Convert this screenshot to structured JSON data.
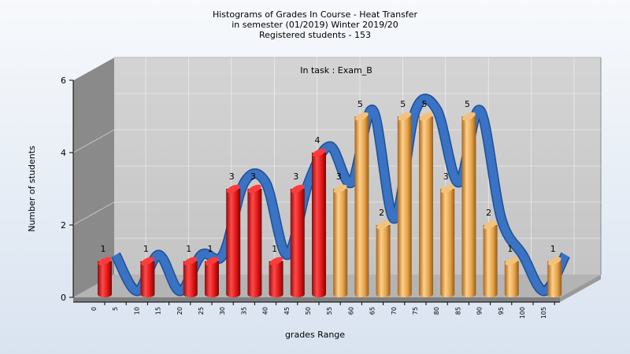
{
  "chart_data": {
    "type": "bar",
    "title_lines": [
      "Histograms of Grades  In Course - Heat Transfer",
      "in semester  (01/2019) Winter 2019/20",
      "Registered students - 153"
    ],
    "annotation": "In task : Exam_B",
    "xlabel": "grades Range",
    "ylabel": "Number of students",
    "ylim": [
      0,
      6
    ],
    "yticks": [
      "0",
      "2",
      "4",
      "6"
    ],
    "categories": [
      "0",
      "5",
      "10",
      "15",
      "20",
      "25",
      "30",
      "35",
      "40",
      "45",
      "50",
      "55",
      "60",
      "65",
      "70",
      "75",
      "80",
      "85",
      "90",
      "95",
      "100",
      "105"
    ],
    "values": [
      1,
      0,
      1,
      0,
      1,
      1,
      3,
      3,
      1,
      3,
      4,
      3,
      5,
      2,
      5,
      5,
      3,
      5,
      2,
      1,
      0,
      1
    ],
    "labels": [
      "1",
      "",
      "1",
      "",
      "1",
      "1",
      "3",
      "3",
      "1",
      "3",
      "4",
      "3",
      "5",
      "2",
      "5",
      "5",
      "3",
      "5",
      "2",
      "1",
      "",
      "1"
    ],
    "bar_colors_by_category": [
      "red",
      "red",
      "red",
      "red",
      "red",
      "red",
      "red",
      "red",
      "red",
      "red",
      "red",
      "orange",
      "orange",
      "orange",
      "orange",
      "orange",
      "orange",
      "orange",
      "orange",
      "orange",
      "orange",
      "orange"
    ],
    "colors": {
      "red": "#e01515",
      "orange": "#e3a24a",
      "curve": "#3a72c4",
      "wall": "#8a8a8a",
      "plot_bg": "#c8c8c8"
    },
    "grid": true,
    "smoothed_curve": true
  }
}
